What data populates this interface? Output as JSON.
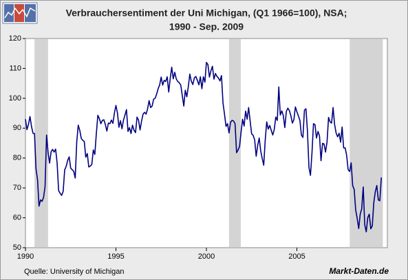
{
  "chart_data": {
    "type": "line",
    "title": "Verbrauchersentiment der Uni Michigan, (Q1 1966=100), NSA;",
    "subtitle": "1990 - Sep. 2009",
    "source": "Quelle: University of Michigan",
    "brand": "Markt-Daten.de",
    "color": "#000080",
    "shade_color": "#d4d4d4",
    "shaded_periods": [
      {
        "start": 1990.5,
        "end": 1991.25
      },
      {
        "start": 2001.25,
        "end": 2001.9
      },
      {
        "start": 2007.92,
        "end": 2009.75
      }
    ],
    "xlim": [
      1990,
      2010
    ],
    "xticks": [
      1990,
      1995,
      2000,
      2005
    ],
    "ylim": [
      50,
      120
    ],
    "yticks": [
      50,
      60,
      70,
      80,
      90,
      100,
      110,
      120
    ],
    "x": [
      1990,
      1990.083,
      1990.167,
      1990.25,
      1990.333,
      1990.417,
      1990.5,
      1990.583,
      1990.667,
      1990.75,
      1990.833,
      1990.917,
      1991,
      1991.083,
      1991.167,
      1991.25,
      1991.333,
      1991.417,
      1991.5,
      1991.583,
      1991.667,
      1991.75,
      1991.833,
      1991.917,
      1992,
      1992.083,
      1992.167,
      1992.25,
      1992.333,
      1992.417,
      1992.5,
      1992.583,
      1992.667,
      1992.75,
      1992.833,
      1992.917,
      1993,
      1993.083,
      1993.167,
      1993.25,
      1993.333,
      1993.417,
      1993.5,
      1993.583,
      1993.667,
      1993.75,
      1993.833,
      1993.917,
      1994,
      1994.083,
      1994.167,
      1994.25,
      1994.333,
      1994.417,
      1994.5,
      1994.583,
      1994.667,
      1994.75,
      1994.833,
      1994.917,
      1995,
      1995.083,
      1995.167,
      1995.25,
      1995.333,
      1995.417,
      1995.5,
      1995.583,
      1995.667,
      1995.75,
      1995.833,
      1995.917,
      1996,
      1996.083,
      1996.167,
      1996.25,
      1996.333,
      1996.417,
      1996.5,
      1996.583,
      1996.667,
      1996.75,
      1996.833,
      1996.917,
      1997,
      1997.083,
      1997.167,
      1997.25,
      1997.333,
      1997.417,
      1997.5,
      1997.583,
      1997.667,
      1997.75,
      1997.833,
      1997.917,
      1998,
      1998.083,
      1998.167,
      1998.25,
      1998.333,
      1998.417,
      1998.5,
      1998.583,
      1998.667,
      1998.75,
      1998.833,
      1998.917,
      1999,
      1999.083,
      1999.167,
      1999.25,
      1999.333,
      1999.417,
      1999.5,
      1999.583,
      1999.667,
      1999.75,
      1999.833,
      1999.917,
      2000,
      2000.083,
      2000.167,
      2000.25,
      2000.333,
      2000.417,
      2000.5,
      2000.583,
      2000.667,
      2000.75,
      2000.833,
      2000.917,
      2001,
      2001.083,
      2001.167,
      2001.25,
      2001.333,
      2001.417,
      2001.5,
      2001.583,
      2001.667,
      2001.75,
      2001.833,
      2001.917,
      2002,
      2002.083,
      2002.167,
      2002.25,
      2002.333,
      2002.417,
      2002.5,
      2002.583,
      2002.667,
      2002.75,
      2002.833,
      2002.917,
      2003,
      2003.083,
      2003.167,
      2003.25,
      2003.333,
      2003.417,
      2003.5,
      2003.583,
      2003.667,
      2003.75,
      2003.833,
      2003.917,
      2004,
      2004.083,
      2004.167,
      2004.25,
      2004.333,
      2004.417,
      2004.5,
      2004.583,
      2004.667,
      2004.75,
      2004.833,
      2004.917,
      2005,
      2005.083,
      2005.167,
      2005.25,
      2005.333,
      2005.417,
      2005.5,
      2005.583,
      2005.667,
      2005.75,
      2005.833,
      2005.917,
      2006,
      2006.083,
      2006.167,
      2006.25,
      2006.333,
      2006.417,
      2006.5,
      2006.583,
      2006.667,
      2006.75,
      2006.833,
      2006.917,
      2007,
      2007.083,
      2007.167,
      2007.25,
      2007.333,
      2007.417,
      2007.5,
      2007.583,
      2007.667,
      2007.75,
      2007.833,
      2007.917,
      2008,
      2008.083,
      2008.167,
      2008.25,
      2008.333,
      2008.417,
      2008.5,
      2008.583,
      2008.667,
      2008.75,
      2008.833,
      2008.917,
      2009,
      2009.083,
      2009.167,
      2009.25,
      2009.333,
      2009.417,
      2009.5,
      2009.583,
      2009.667
    ],
    "values": [
      93.0,
      89.5,
      91.3,
      93.9,
      90.6,
      88.3,
      88.2,
      76.4,
      72.8,
      63.9,
      66.0,
      65.5,
      66.8,
      70.4,
      87.7,
      81.8,
      78.3,
      82.1,
      82.9,
      82.0,
      83.0,
      78.3,
      69.1,
      68.2,
      67.5,
      68.8,
      76.0,
      77.2,
      79.2,
      80.4,
      76.6,
      76.1,
      75.6,
      73.3,
      85.3,
      91.0,
      89.3,
      86.6,
      85.9,
      85.6,
      80.3,
      81.5,
      77.0,
      77.3,
      77.9,
      82.7,
      81.2,
      88.2,
      94.3,
      93.2,
      91.5,
      92.6,
      92.8,
      91.2,
      89.0,
      91.7,
      91.5,
      92.7,
      91.6,
      95.1,
      97.6,
      95.1,
      90.3,
      92.5,
      89.8,
      92.7,
      94.4,
      96.2,
      88.9,
      90.2,
      88.2,
      91.0,
      89.3,
      88.5,
      93.7,
      92.7,
      89.4,
      92.4,
      94.7,
      95.3,
      94.7,
      96.5,
      99.2,
      96.9,
      97.4,
      99.7,
      100.0,
      101.4,
      103.2,
      104.5,
      107.1,
      104.4,
      106.0,
      105.6,
      107.2,
      102.1,
      106.6,
      110.4,
      106.5,
      108.7,
      106.5,
      105.6,
      105.2,
      104.4,
      100.9,
      97.4,
      102.7,
      100.5,
      103.9,
      108.1,
      105.7,
      104.6,
      106.8,
      107.3,
      106.0,
      104.5,
      107.2,
      103.2,
      107.2,
      105.4,
      112.0,
      111.3,
      107.1,
      109.2,
      110.7,
      106.4,
      108.3,
      107.3,
      106.8,
      105.8,
      107.6,
      98.4,
      94.7,
      90.6,
      91.5,
      88.4,
      92.0,
      92.6,
      92.4,
      91.5,
      81.8,
      82.7,
      83.9,
      88.8,
      93.0,
      90.7,
      95.7,
      93.0,
      96.9,
      92.4,
      88.1,
      87.6,
      86.1,
      80.6,
      84.2,
      86.7,
      82.4,
      79.9,
      77.6,
      86.0,
      92.1,
      89.7,
      90.9,
      89.3,
      87.7,
      89.6,
      93.7,
      92.6,
      103.8,
      94.4,
      95.8,
      94.2,
      90.2,
      95.6,
      96.7,
      95.9,
      94.2,
      91.7,
      92.8,
      97.1,
      95.5,
      94.1,
      92.6,
      87.7,
      86.9,
      96.0,
      96.5,
      89.1,
      76.9,
      74.2,
      81.6,
      91.5,
      91.2,
      86.7,
      88.9,
      87.4,
      79.1,
      84.9,
      84.7,
      82.0,
      85.4,
      93.6,
      92.1,
      91.7,
      96.9,
      91.3,
      88.4,
      87.1,
      88.3,
      85.3,
      90.4,
      83.4,
      83.4,
      80.9,
      76.1,
      75.5,
      78.4,
      70.8,
      69.5,
      62.6,
      59.8,
      56.4,
      61.2,
      63.0,
      70.3,
      57.6,
      55.3,
      60.1,
      61.2,
      56.3,
      57.3,
      65.1,
      68.7,
      70.8,
      66.0,
      65.7,
      73.5
    ]
  }
}
